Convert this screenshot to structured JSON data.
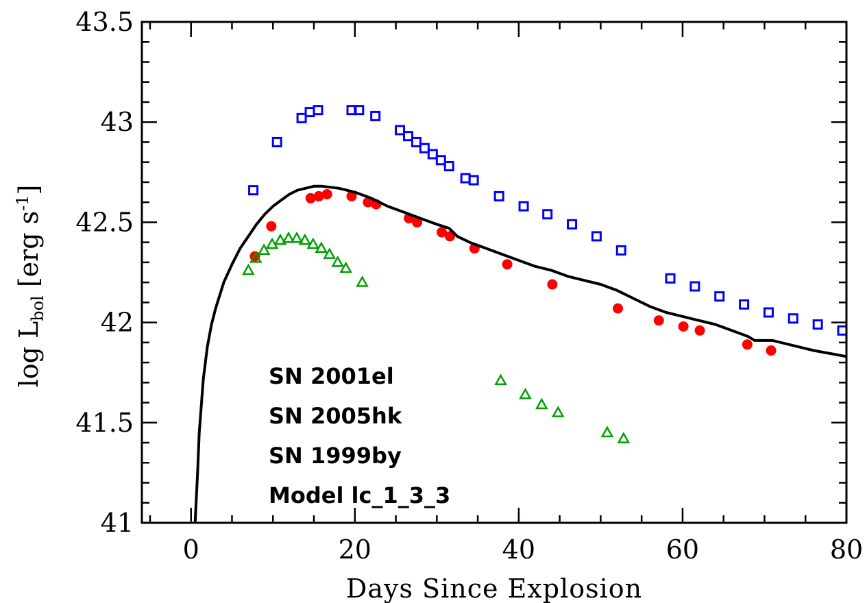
{
  "chart_data": {
    "type": "scatter",
    "xlabel": "Days Since Explosion",
    "ylabel": {
      "prefix": "log L",
      "sub": "bol",
      "mid": " [erg s",
      "sup": "-1",
      "suffix": "]"
    },
    "xlim": [
      -6,
      80
    ],
    "ylim": [
      41,
      43.5
    ],
    "x_ticks": [
      0,
      20,
      40,
      60,
      80
    ],
    "y_ticks": [
      41,
      41.5,
      42,
      42.5,
      43,
      43.5
    ],
    "x_tick_labels": [
      "0",
      "20",
      "40",
      "60",
      "80"
    ],
    "y_tick_labels": [
      "41",
      "41.5",
      "42",
      "42.5",
      "43",
      "43.5"
    ],
    "legend_placement": "bottom-left",
    "series": [
      {
        "name": "SN 2001el",
        "marker": "open-square",
        "color": "#0000ff",
        "x": [
          7.6,
          10.5,
          13.5,
          14.5,
          15.5,
          19.6,
          20.5,
          22.5,
          25.5,
          26.5,
          27.5,
          28.5,
          29.5,
          30.5,
          31.5,
          33.5,
          34.5,
          37.6,
          40.6,
          43.5,
          46.5,
          49.5,
          52.5,
          58.5,
          61.5,
          64.5,
          67.5,
          70.5,
          73.5,
          76.5,
          79.5
        ],
        "y": [
          42.66,
          42.9,
          43.02,
          43.05,
          43.06,
          43.06,
          43.06,
          43.03,
          42.96,
          42.93,
          42.9,
          42.87,
          42.84,
          42.81,
          42.78,
          42.72,
          42.71,
          42.63,
          42.58,
          42.54,
          42.49,
          42.43,
          42.36,
          42.22,
          42.18,
          42.13,
          42.09,
          42.05,
          42.02,
          41.99,
          41.96
        ]
      },
      {
        "name": "SN 2005hk",
        "marker": "filled-circle",
        "color": "#ff0000",
        "x": [
          7.8,
          9.8,
          14.6,
          15.6,
          16.6,
          19.6,
          21.6,
          22.6,
          26.6,
          27.6,
          30.6,
          31.6,
          34.6,
          38.6,
          44.1,
          52.1,
          57.1,
          60.1,
          62.1,
          67.9,
          70.8
        ],
        "y": [
          42.33,
          42.48,
          42.62,
          42.63,
          42.64,
          42.63,
          42.6,
          42.59,
          42.52,
          42.5,
          42.45,
          42.43,
          42.37,
          42.29,
          42.19,
          42.07,
          42.01,
          41.98,
          41.96,
          41.89,
          41.86
        ]
      },
      {
        "name": "SN 1999by",
        "marker": "open-triangle",
        "color": "#00a000",
        "x": [
          7.0,
          7.9,
          8.9,
          9.9,
          10.9,
          11.9,
          12.9,
          13.9,
          14.9,
          15.9,
          16.9,
          17.9,
          18.9,
          20.9,
          37.8,
          40.8,
          42.8,
          44.8,
          50.8,
          52.8
        ],
        "y": [
          42.26,
          42.32,
          42.36,
          42.39,
          42.41,
          42.42,
          42.42,
          42.41,
          42.39,
          42.37,
          42.34,
          42.3,
          42.27,
          42.2,
          41.71,
          41.64,
          41.59,
          41.55,
          41.45,
          41.42
        ]
      },
      {
        "name": "Model lc_1_3_3",
        "marker": "line",
        "color": "#000000",
        "x": [
          0.5,
          0.8,
          1.0,
          1.5,
          2.0,
          2.5,
          3.0,
          4.0,
          5.0,
          6.0,
          7.0,
          8.0,
          9.0,
          10.0,
          11.0,
          12.0,
          13.0,
          14.0,
          15.0,
          16.0,
          18.0,
          20.0,
          22.0,
          24.0,
          26.0,
          28.0,
          30.0,
          31.5,
          32.5,
          34.0,
          36.0,
          38.0,
          40.0,
          42.0,
          44.0,
          46.0,
          48.0,
          50.0,
          52.0,
          54.0,
          56.0,
          58.0,
          60.0,
          62.0,
          64.0,
          66.0,
          68.0,
          68.8,
          69.5,
          71.0,
          73.0,
          76.0,
          80.0
        ],
        "y": [
          41.0,
          41.25,
          41.45,
          41.72,
          41.88,
          41.99,
          42.07,
          42.2,
          42.29,
          42.37,
          42.43,
          42.49,
          42.54,
          42.58,
          42.61,
          42.64,
          42.66,
          42.67,
          42.68,
          42.68,
          42.67,
          42.65,
          42.62,
          42.58,
          42.55,
          42.52,
          42.49,
          42.47,
          42.43,
          42.4,
          42.37,
          42.34,
          42.31,
          42.28,
          42.26,
          42.23,
          42.21,
          42.19,
          42.16,
          42.12,
          42.08,
          42.05,
          42.03,
          42.01,
          41.99,
          41.96,
          41.93,
          41.91,
          41.91,
          41.91,
          41.89,
          41.86,
          41.83
        ]
      }
    ],
    "legend": [
      "SN 2001el",
      "SN 2005hk",
      "SN 1999by",
      "Model lc_1_3_3"
    ]
  }
}
